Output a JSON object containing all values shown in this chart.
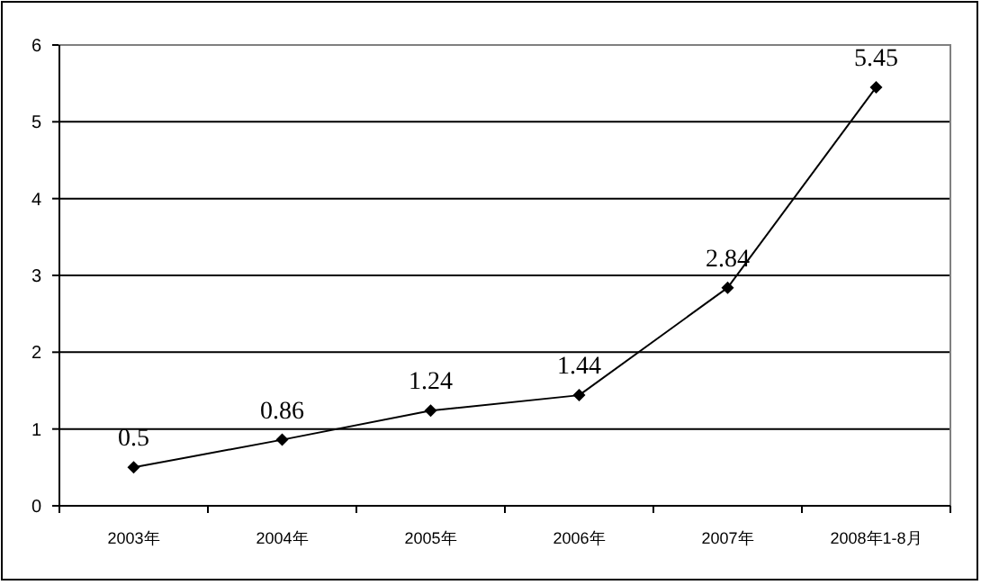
{
  "chart_data": {
    "type": "line",
    "categories": [
      "2003年",
      "2004年",
      "2005年",
      "2006年",
      "2007年",
      "2008年1-8月"
    ],
    "values": [
      0.5,
      0.86,
      1.24,
      1.44,
      2.84,
      5.45
    ],
    "color": "#000000",
    "ylim": [
      0,
      6
    ],
    "yticks": [
      0,
      1,
      2,
      3,
      4,
      5,
      6
    ],
    "grid": "y",
    "marker": "diamond",
    "line_style": "solid",
    "data_labels": true
  }
}
